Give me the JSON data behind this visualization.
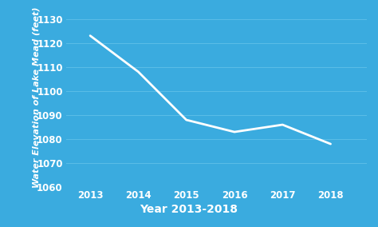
{
  "x": [
    2013,
    2014,
    2015,
    2016,
    2017,
    2018
  ],
  "y": [
    1123,
    1108,
    1088,
    1083,
    1086,
    1078
  ],
  "xlim": [
    2012.5,
    2018.75
  ],
  "ylim": [
    1060,
    1135
  ],
  "yticks": [
    1060,
    1070,
    1080,
    1090,
    1100,
    1110,
    1120,
    1130
  ],
  "xticks": [
    2013,
    2014,
    2015,
    2016,
    2017,
    2018
  ],
  "xlabel": "Year 2013-2018",
  "ylabel": "Water Elevation of Lake Mead (feet)",
  "line_color": "#ffffff",
  "bg_color": "#3aabdf",
  "ylabel_bg_color": "#2980c0",
  "xlabel_bg_color": "#1a6faa",
  "grid_color": "#5bbde8",
  "tick_label_color": "#ffffff",
  "axis_label_color": "#ffffff",
  "line_width": 2.0,
  "xlabel_fontsize": 10,
  "ylabel_fontsize": 8,
  "tick_fontsize": 8.5
}
